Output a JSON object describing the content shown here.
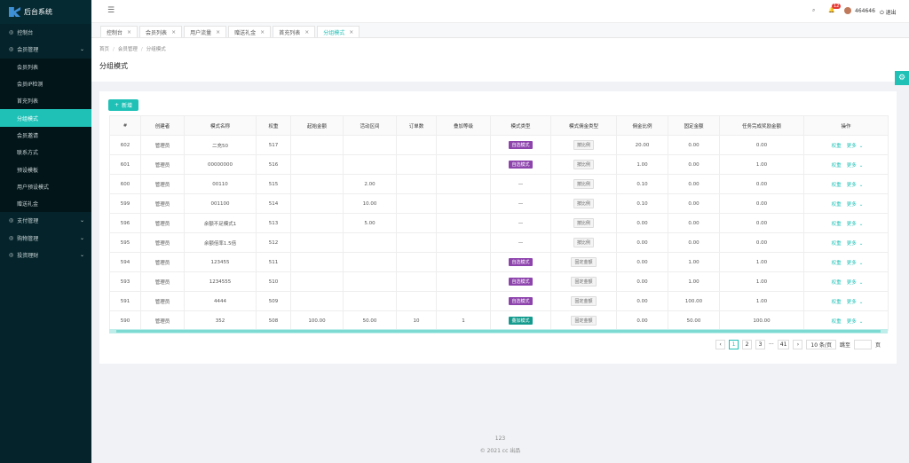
{
  "sidebar": {
    "logo": "后台系统",
    "menu": [
      {
        "label": "控制台"
      },
      {
        "label": "会员管理",
        "children": [
          "会员列表",
          "会员IP检测",
          "首充列表",
          "分组模式",
          "会员邀请",
          "联系方式",
          "预设模板",
          "用户预设模式",
          "赠送礼金"
        ]
      },
      {
        "label": "支付管理"
      },
      {
        "label": "购物管理"
      },
      {
        "label": "投资理财"
      }
    ]
  },
  "topbar": {
    "badge": 12,
    "user": "464646",
    "logout": "退出"
  },
  "tabs": [
    "控制台",
    "会员列表",
    "用户流量",
    "赠送礼金",
    "首充列表",
    "分组模式"
  ],
  "breadcrumb": [
    "首页",
    "会员管理",
    "分组模式"
  ],
  "title": "分组模式",
  "add_button": "新增",
  "table": {
    "headers": [
      "#",
      "创建者",
      "模式名称",
      "权重",
      "起始金额",
      "活动区间",
      "订单数",
      "叠加等级",
      "模式类型",
      "模式佣金类型",
      "佣金比例",
      "固定金额",
      "任务完成奖励金额",
      "操作"
    ],
    "rows": [
      [
        602,
        "管理员",
        "二充50",
        517,
        null,
        null,
        null,
        null,
        {
          "tag": "自选模式"
        },
        {
          "tag": "按比例"
        },
        "20.00",
        "0.00",
        "0.00"
      ],
      [
        601,
        "管理员",
        "00000000",
        516,
        null,
        null,
        null,
        null,
        {
          "tag": "自选模式"
        },
        {
          "tag": "按比例"
        },
        "1.00",
        "0.00",
        "1.00"
      ],
      [
        600,
        "管理员",
        "00110",
        515,
        null,
        "2.00",
        null,
        null,
        "—",
        {
          "tag": "按比例"
        },
        "0.10",
        "0.00",
        "0.00"
      ],
      [
        599,
        "管理员",
        "001100",
        514,
        null,
        "10.00",
        null,
        null,
        "—",
        {
          "tag": "按比例"
        },
        "0.10",
        "0.00",
        "0.00"
      ],
      [
        596,
        "管理员",
        "余额不足模式1",
        513,
        null,
        "5.00",
        null,
        null,
        "—",
        {
          "tag": "按比例"
        },
        "0.00",
        "0.00",
        "0.00"
      ],
      [
        595,
        "管理员",
        "余额倍率1.5倍",
        512,
        null,
        null,
        null,
        null,
        "—",
        {
          "tag": "按比例"
        },
        "0.00",
        "0.00",
        "0.00"
      ],
      [
        594,
        "管理员",
        "123455",
        511,
        null,
        null,
        null,
        null,
        {
          "tag": "自选模式"
        },
        {
          "tag": "固定金额"
        },
        "0.00",
        "1.00",
        "1.00"
      ],
      [
        593,
        "管理员",
        "1234555",
        510,
        null,
        null,
        null,
        null,
        {
          "tag": "自选模式"
        },
        {
          "tag": "固定金额"
        },
        "0.00",
        "1.00",
        "1.00"
      ],
      [
        591,
        "管理员",
        "4444",
        509,
        null,
        null,
        null,
        null,
        {
          "tag": "自选模式"
        },
        {
          "tag": "固定金额"
        },
        "0.00",
        "100.00",
        "1.00"
      ],
      [
        590,
        "管理员",
        "352",
        508,
        "100.00",
        "50.00",
        10,
        1,
        {
          "tag": "叠加模式"
        },
        {
          "tag": "固定金额"
        },
        "0.00",
        "50.00",
        "100.00"
      ]
    ],
    "actions": [
      "权重",
      "更多"
    ]
  },
  "pagination": {
    "pages": [
      1,
      2,
      3,
      41
    ],
    "ellipsis": "···",
    "page_size": "10 条/页",
    "jump": "跳至",
    "page_unit": "页"
  },
  "footer": {
    "text": "123",
    "copyright": "© 2021 cc 出品"
  }
}
